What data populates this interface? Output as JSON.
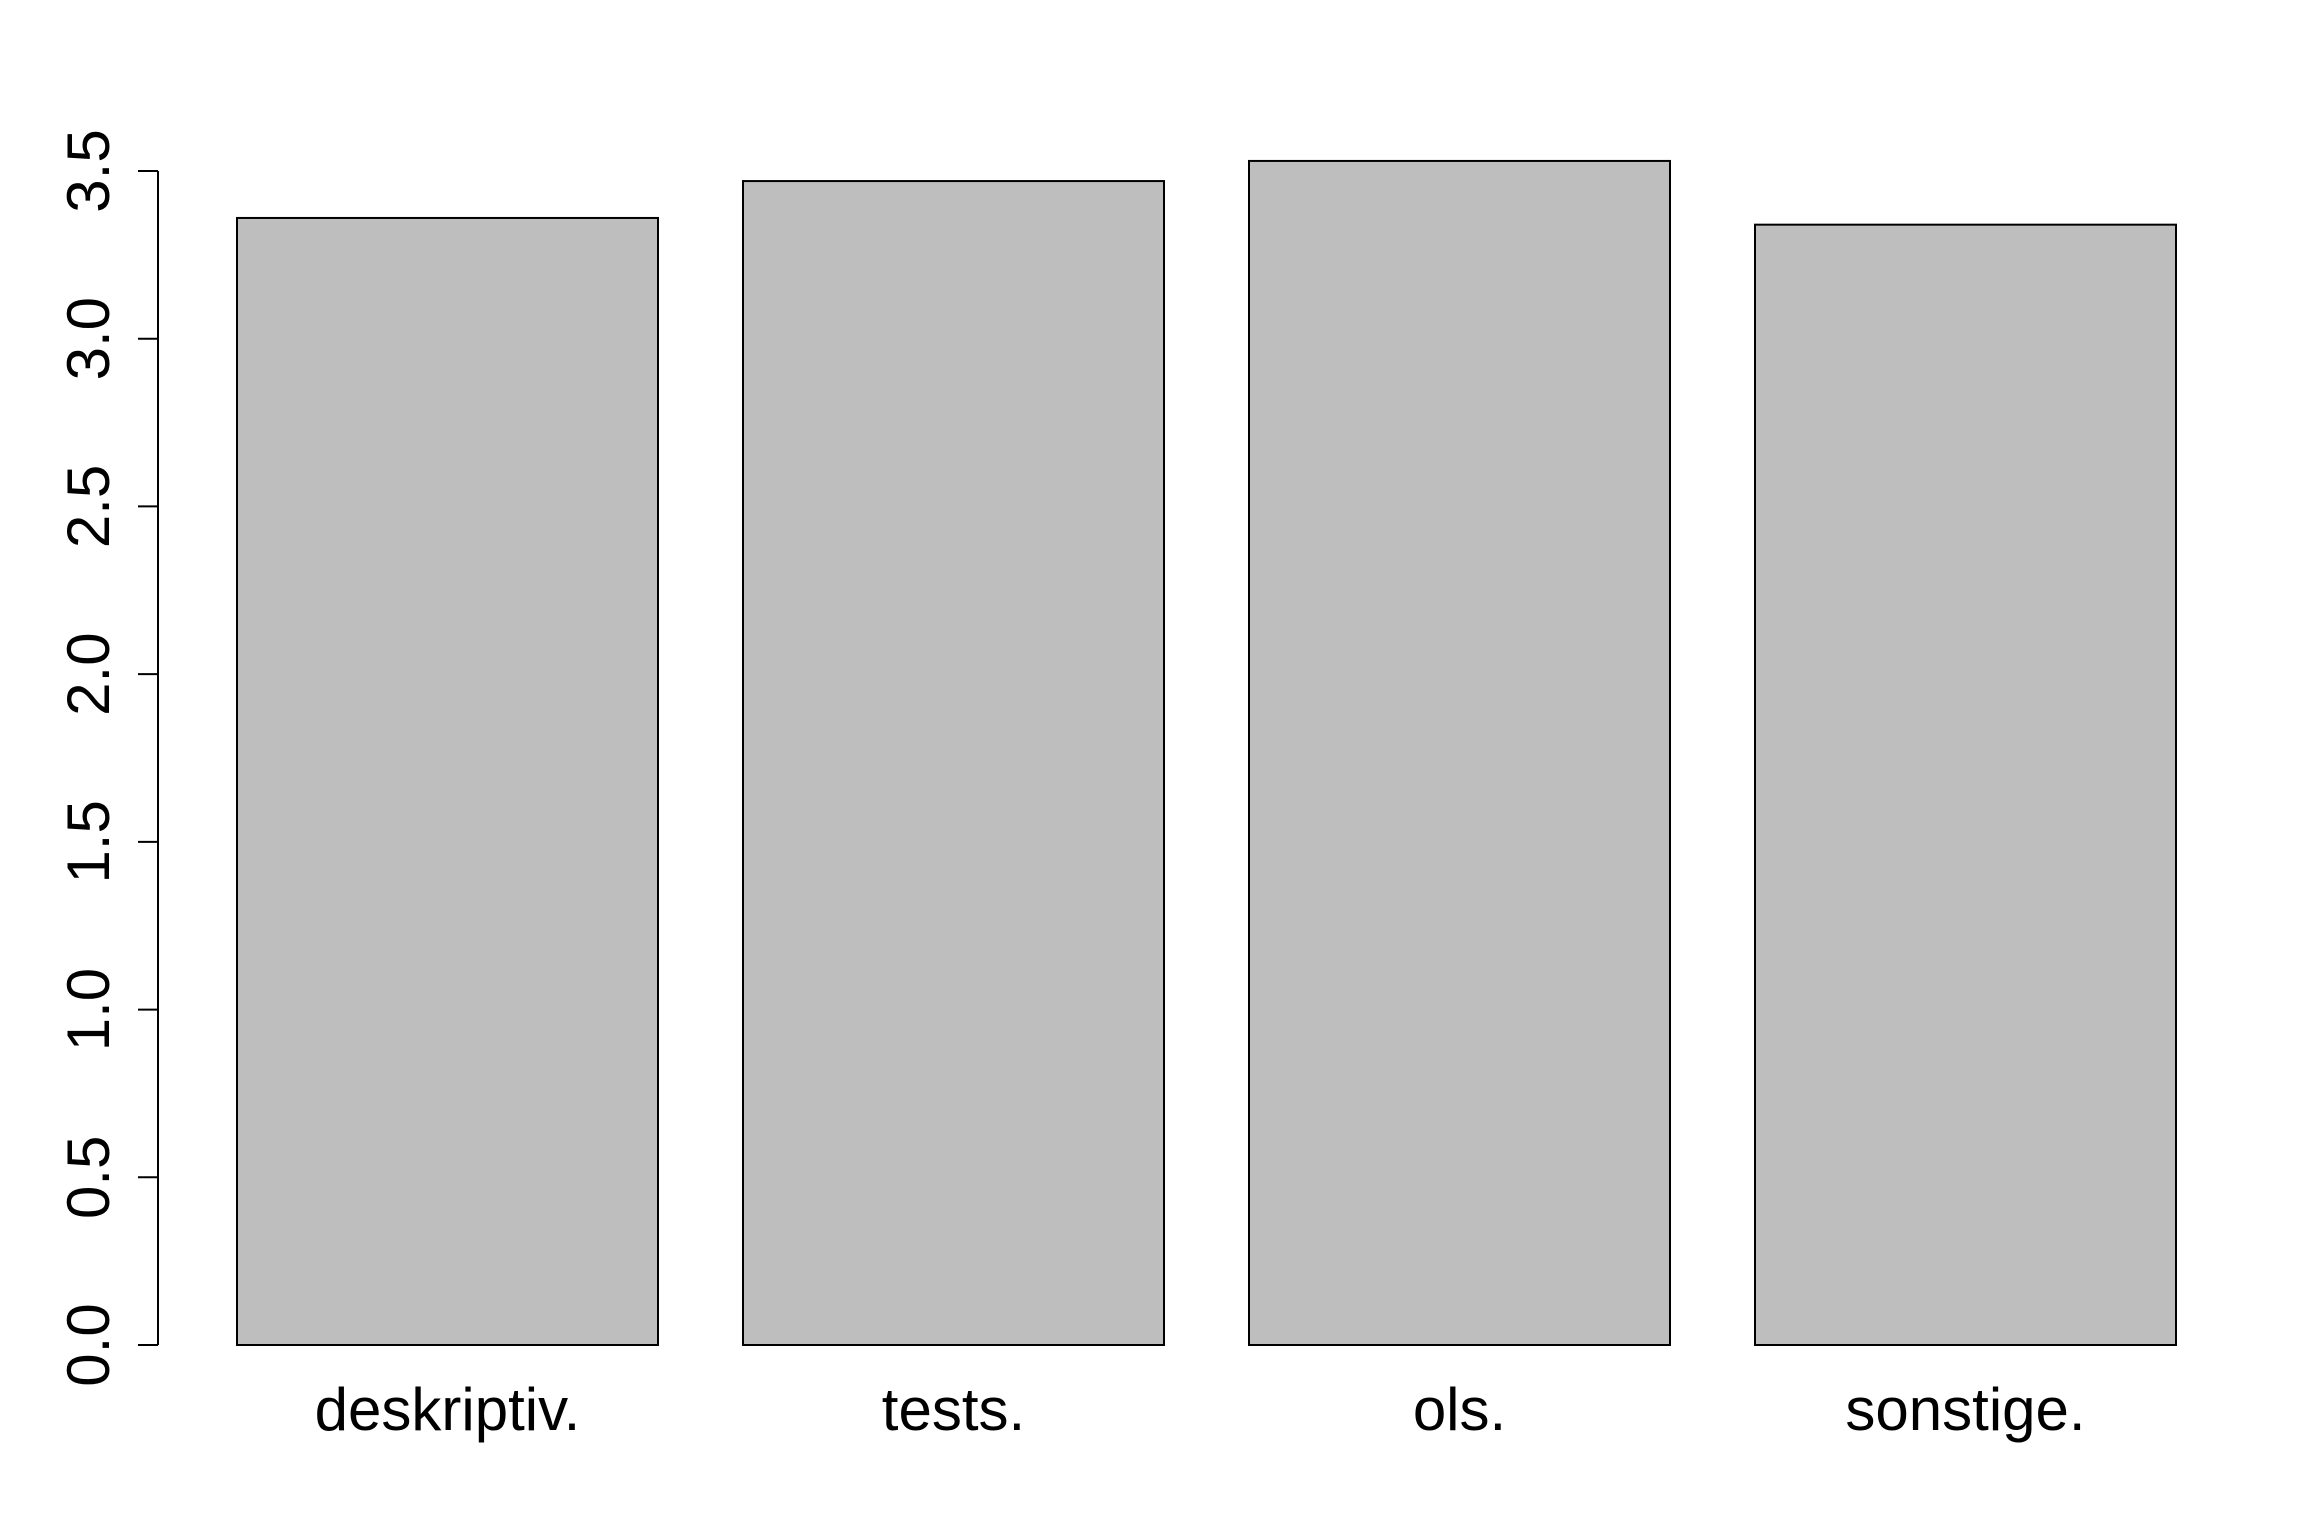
{
  "chart_data": {
    "type": "bar",
    "categories": [
      "deskriptiv.",
      "tests.",
      "ols.",
      "sonstige."
    ],
    "values": [
      3.36,
      3.47,
      3.53,
      3.34
    ],
    "title": "",
    "xlabel": "",
    "ylabel": "",
    "ylim": [
      0,
      3.5
    ],
    "yticks": [
      "0.0",
      "0.5",
      "1.0",
      "1.5",
      "2.0",
      "2.5",
      "3.0",
      "3.5"
    ],
    "grid": false,
    "legend": "none",
    "colors": {
      "bar_fill": "#bebebe",
      "bar_stroke": "#000000",
      "axis": "#000000",
      "background": "#ffffff"
    }
  }
}
